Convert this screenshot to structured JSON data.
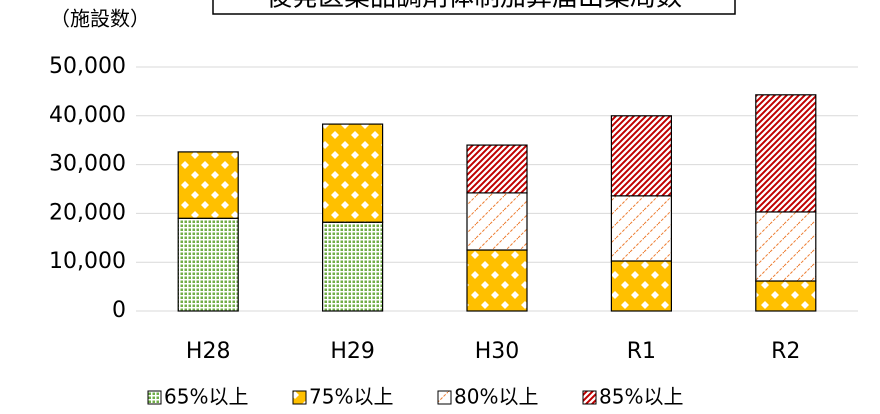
{
  "chart_data": {
    "type": "stacked_bar",
    "title": "後発医薬品調剤体制加算届出薬局数",
    "y_label": "（施設数）",
    "categories": [
      "H28",
      "H29",
      "H30",
      "R1",
      "R2"
    ],
    "series": [
      {
        "name": "65%以上",
        "color": "#70ad47",
        "values": [
          19000,
          18200,
          null,
          null,
          null
        ]
      },
      {
        "name": "75%以上",
        "color": "#ffc000",
        "values": [
          13600,
          20100,
          12500,
          10250,
          6150
        ]
      },
      {
        "name": "80%以上",
        "color": "#ed7d31",
        "values": [
          null,
          null,
          11700,
          13350,
          14150
        ]
      },
      {
        "name": "85%以上",
        "color": "#c00000",
        "values": [
          null,
          null,
          9800,
          16400,
          24000
        ]
      }
    ],
    "ylim": [
      0,
      50000
    ],
    "yticks": [
      0,
      {
        "value": 10000,
        "label": "10,000"
      },
      {
        "value": 20000,
        "label": "20,000"
      },
      {
        "value": 30000,
        "label": "30,000"
      },
      {
        "value": 40000,
        "label": "40,000"
      },
      {
        "value": 50000,
        "label": "50,000"
      }
    ],
    "grid": true
  }
}
